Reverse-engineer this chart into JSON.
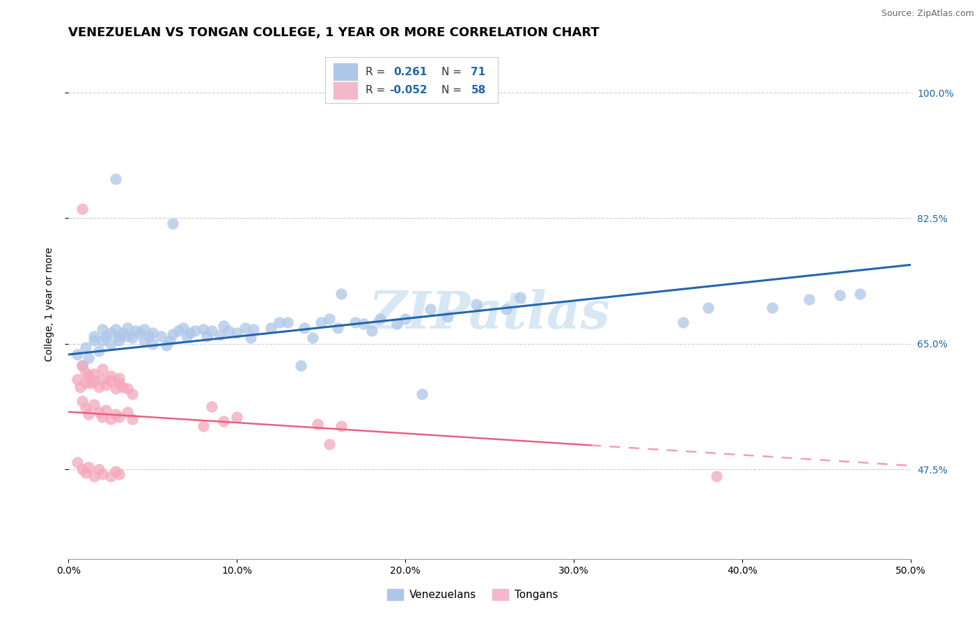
{
  "title": "VENEZUELAN VS TONGAN COLLEGE, 1 YEAR OR MORE CORRELATION CHART",
  "source": "Source: ZipAtlas.com",
  "xlabel_ticks": [
    "0.0%",
    "10.0%",
    "20.0%",
    "30.0%",
    "40.0%",
    "50.0%"
  ],
  "xlabel_vals": [
    0.0,
    0.1,
    0.2,
    0.3,
    0.4,
    0.5
  ],
  "ylabel_ticks": [
    "47.5%",
    "65.0%",
    "82.5%",
    "100.0%"
  ],
  "ylabel_vals": [
    0.475,
    0.65,
    0.825,
    1.0
  ],
  "xlim": [
    0.0,
    0.5
  ],
  "ylim": [
    0.35,
    1.06
  ],
  "legend_bottom_blue": "Venezuelans",
  "legend_bottom_pink": "Tongans",
  "watermark": "ZIPatlas",
  "blue_scatter_color": "#aec6e8",
  "pink_scatter_color": "#f4a7bb",
  "blue_line_color": "#2166ac",
  "pink_line_color": "#e86080",
  "title_fontsize": 13,
  "axis_label_fontsize": 10,
  "tick_fontsize": 10,
  "background_color": "#ffffff",
  "grid_color": "#cccccc",
  "legend_blue_r": "0.261",
  "legend_blue_n": "71",
  "legend_pink_r": "-0.052",
  "legend_pink_n": "58"
}
